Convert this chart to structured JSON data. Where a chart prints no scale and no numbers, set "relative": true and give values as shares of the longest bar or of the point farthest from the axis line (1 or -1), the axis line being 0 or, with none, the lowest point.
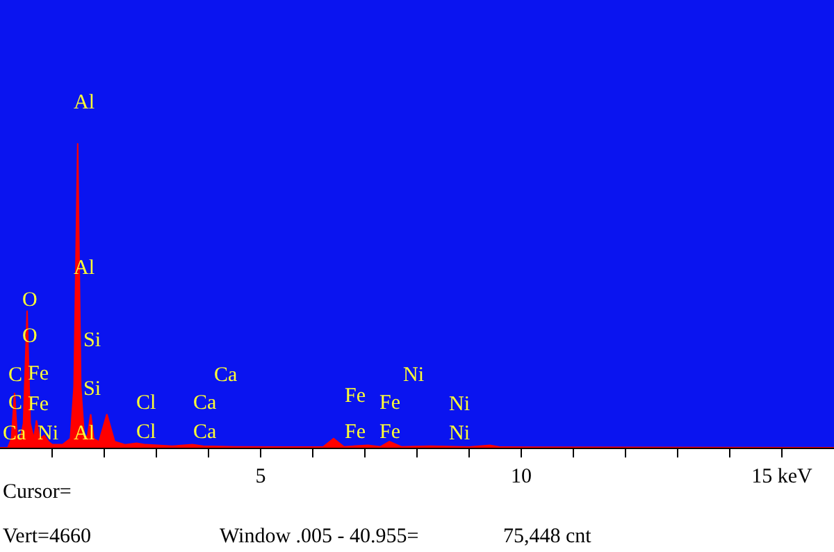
{
  "chart_data": {
    "type": "area",
    "relative": true,
    "grid": false,
    "tick_labels": "x",
    "xlim": [
      0,
      16
    ],
    "xticks": [
      {
        "value": 1,
        "label": null
      },
      {
        "value": 2,
        "label": null
      },
      {
        "value": 3,
        "label": null
      },
      {
        "value": 4,
        "label": null
      },
      5,
      {
        "value": 6,
        "label": null
      },
      {
        "value": 7,
        "label": null
      },
      {
        "value": 8,
        "label": null
      },
      {
        "value": 9,
        "label": null
      },
      10,
      {
        "value": 11,
        "label": null
      },
      {
        "value": 12,
        "label": null
      },
      {
        "value": 13,
        "label": null
      },
      {
        "value": 14,
        "label": null
      },
      {
        "value": 15,
        "label": "15 keV"
      }
    ],
    "series": [
      {
        "color": "#ff0000",
        "x": [
          0,
          0.15,
          0.22,
          0.28,
          0.33,
          0.38,
          0.45,
          0.52,
          0.58,
          0.65,
          0.7,
          0.76,
          0.85,
          0.93,
          1.0,
          1.2,
          1.35,
          1.42,
          1.49,
          1.55,
          1.62,
          1.68,
          1.74,
          1.8,
          1.9,
          2.05,
          2.2,
          2.4,
          2.62,
          2.8,
          3.3,
          3.69,
          3.9,
          4.5,
          5.5,
          6.2,
          6.4,
          6.6,
          7.06,
          7.3,
          7.47,
          7.7,
          8.26,
          9,
          9.4,
          9.6,
          12,
          16
        ],
        "values": [
          0,
          0,
          0.03,
          0.18,
          0.03,
          0.02,
          0.08,
          0.45,
          0.08,
          0.03,
          0.09,
          0.03,
          0.04,
          0.02,
          0.01,
          0.01,
          0.03,
          0.2,
          1.0,
          0.2,
          0.03,
          0.04,
          0.11,
          0.03,
          0.02,
          0.11,
          0.02,
          0.01,
          0.015,
          0.01,
          0.005,
          0.01,
          0.005,
          0.003,
          0.002,
          0.003,
          0.03,
          0.003,
          0.008,
          0.003,
          0.02,
          0.003,
          0.005,
          0.002,
          0.008,
          0.002,
          0.001,
          0
        ]
      }
    ],
    "annotations": [
      "Al",
      "Al",
      "Al",
      "O",
      "O",
      "Si",
      "Si",
      "C",
      "C",
      "Fe",
      "Fe",
      "Ca",
      "Ni",
      "Cl",
      "Cl",
      "Ca",
      "Ca",
      "Ca",
      "Fe",
      "Fe",
      "Fe",
      "Fe",
      "Ni",
      "Ni",
      "Ni",
      "Cursor=",
      "Vert=4660",
      "Window .005 - 40.955=",
      "75,448 cnt"
    ]
  }
}
